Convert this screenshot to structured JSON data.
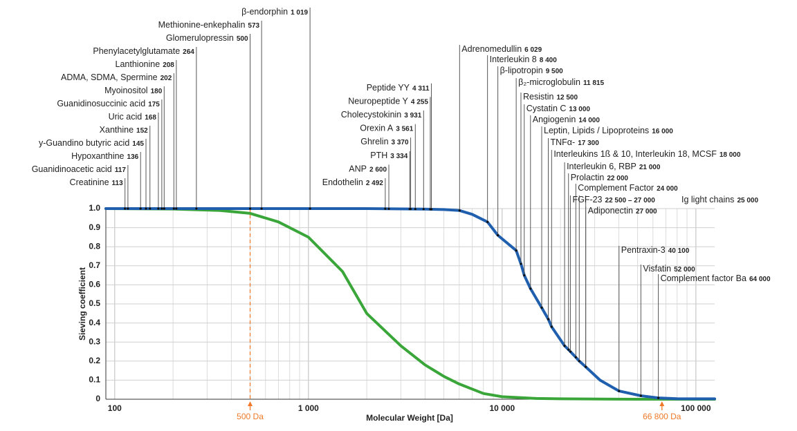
{
  "chart_data": {
    "type": "line",
    "x_label": "Molecular Weight [Da]",
    "y_label": "Sieving coefficient",
    "log_x": true,
    "grid": true,
    "xlim": [
      90,
      125000
    ],
    "ylim": [
      0,
      1
    ],
    "xticks": [
      100,
      {
        "value": 1000,
        "label": "1 000"
      },
      {
        "value": 10000,
        "label": "10 000"
      },
      {
        "value": 100000,
        "label": "100 000"
      }
    ],
    "xminor": [
      200,
      300,
      400,
      500,
      600,
      700,
      800,
      900,
      2000,
      3000,
      4000,
      5000,
      6000,
      7000,
      8000,
      9000,
      20000,
      30000,
      40000,
      50000,
      60000,
      70000,
      80000,
      90000
    ],
    "yticks": [
      0,
      0.1,
      0.2,
      0.3,
      0.4,
      0.5,
      0.6,
      0.7,
      0.8,
      0.9,
      {
        "value": 1,
        "label": "1.0"
      }
    ],
    "series": [
      {
        "color": "#1f5fad",
        "x": [
          90,
          200,
          500,
          1000,
          2000,
          4000,
          5000,
          6029,
          7000,
          8400,
          9500,
          11815,
          12500,
          13000,
          14000,
          16000,
          17300,
          18000,
          21000,
          22000,
          24000,
          25000,
          27000,
          32000,
          40100,
          52000,
          64000,
          80000,
          100000,
          125000
        ],
        "values": [
          1,
          1,
          1,
          1,
          1,
          0.997,
          0.995,
          0.99,
          0.97,
          0.93,
          0.86,
          0.78,
          0.71,
          0.65,
          0.58,
          0.48,
          0.42,
          0.38,
          0.28,
          0.26,
          0.22,
          0.2,
          0.17,
          0.1,
          0.043,
          0.018,
          0.007,
          0.003,
          0.002,
          0.002
        ]
      },
      {
        "color": "#3aa63a",
        "x": [
          90,
          200,
          350,
          500,
          700,
          1000,
          1500,
          2000,
          3000,
          4000,
          5000,
          6000,
          8000,
          10000,
          15000,
          20000,
          50000,
          125000
        ],
        "values": [
          1,
          0.998,
          0.99,
          0.975,
          0.93,
          0.85,
          0.67,
          0.45,
          0.28,
          0.18,
          0.12,
          0.08,
          0.03,
          0.013,
          0.004,
          0.002,
          0,
          0
        ]
      }
    ],
    "markers": [
      {
        "x": 500,
        "label": "500 Da",
        "dashed": true,
        "color": "#f07828"
      },
      {
        "x": 66800,
        "label": "66 800 Da",
        "dashed": false,
        "color": "#f07828"
      }
    ],
    "annotations": [
      {
        "name": "Creatinine",
        "mw": 113
      },
      {
        "name": "Guanidinoacetic acid",
        "mw": 117
      },
      {
        "name": "Hypoxanthine",
        "mw": 136
      },
      {
        "name": "y-Guandino butyric acid",
        "mw": 145
      },
      {
        "name": "Xanthine",
        "mw": 152
      },
      {
        "name": "Uric acid",
        "mw": 168
      },
      {
        "name": "Guanidinosuccinic acid",
        "mw": 175
      },
      {
        "name": "Myoinositol",
        "mw": 180
      },
      {
        "name": "ADMA, SDMA, Spermine",
        "mw": 202
      },
      {
        "name": "Lanthionine",
        "mw": 208
      },
      {
        "name": "Phenylacetylglutamate",
        "mw": 264
      },
      {
        "name": "Glomerulopressin",
        "mw": 500
      },
      {
        "name": "Methionine-enkephalin",
        "mw": 573
      },
      {
        "name": "β-endorphin",
        "mw": 1019,
        "mw_label": "1 019"
      },
      {
        "name": "Endothelin",
        "mw": 2492,
        "mw_label": "2 492"
      },
      {
        "name": "ANP",
        "mw": 2600,
        "mw_label": "2 600"
      },
      {
        "name": "PTH",
        "mw": 3334,
        "mw_label": "3 334"
      },
      {
        "name": "Ghrelin",
        "mw": 3370,
        "mw_label": "3 370"
      },
      {
        "name": "Orexin A",
        "mw": 3561,
        "mw_label": "3 561"
      },
      {
        "name": "Cholecystokinin",
        "mw": 3931,
        "mw_label": "3 931"
      },
      {
        "name": "Neuropeptide Y",
        "mw": 4255,
        "mw_label": "4 255"
      },
      {
        "name": "Peptide YY",
        "mw": 4311,
        "mw_label": "4 311"
      },
      {
        "name": "Adrenomedullin",
        "mw": 6029,
        "mw_label": "6 029"
      },
      {
        "name": "Interleukin 8",
        "mw": 8400,
        "mw_label": "8 400"
      },
      {
        "name": "β-lipotropin",
        "mw": 9500,
        "mw_label": "9 500"
      },
      {
        "name": "β₂-microglobulin",
        "mw": 11815,
        "mw_label": "11 815"
      },
      {
        "name": "Resistin",
        "mw": 12500,
        "mw_label": "12 500"
      },
      {
        "name": "Cystatin C",
        "mw": 13000,
        "mw_label": "13 000"
      },
      {
        "name": "Angiogenin",
        "mw": 14000,
        "mw_label": "14 000"
      },
      {
        "name": "Leptin, Lipids / Lipoproteins",
        "mw": 16000,
        "mw_label": "16 000"
      },
      {
        "name": "TNFα-",
        "mw": 17300,
        "mw_label": "17 300"
      },
      {
        "name": "Interleukins 1ß & 10, Interleukin 18, MCSF",
        "mw": 18000,
        "mw_label": "18 000"
      },
      {
        "name": "Interleukin 6, RBP",
        "mw": 21000,
        "mw_label": "21 000"
      },
      {
        "name": "Prolactin",
        "mw": 22000,
        "mw_label": "22 000"
      },
      {
        "name": "Complement Factor",
        "mw": 24000,
        "mw_label": "24 000"
      },
      {
        "name": "FGF-23",
        "mw": [
          22500,
          27000
        ],
        "mw_label": "22 500 – 27 000"
      },
      {
        "name": "Ig light chains",
        "mw": 25000,
        "mw_label": "25 000"
      },
      {
        "name": "Adiponectin",
        "mw": 27000,
        "mw_label": "27 000"
      },
      {
        "name": "Pentraxin-3",
        "mw": 40100,
        "mw_label": "40 100"
      },
      {
        "name": "Visfatin",
        "mw": 52000,
        "mw_label": "52 000"
      },
      {
        "name": "Complement factor Ba",
        "mw": 64000,
        "mw_label": "64 000"
      }
    ]
  }
}
